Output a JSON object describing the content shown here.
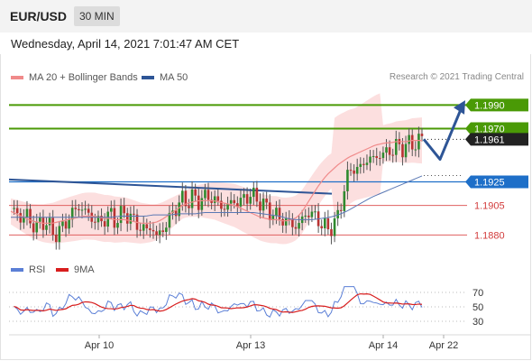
{
  "header": {
    "symbol": "EUR/USD",
    "timeframe": "30 MIN"
  },
  "timestamp": "Wednesday, April 14, 2021 7:01:47 AM CET",
  "legend": {
    "ma20": {
      "label": "MA 20 + Bollinger Bands",
      "color": "#f08a8a"
    },
    "ma50": {
      "label": "MA 50",
      "color": "#2e5596"
    }
  },
  "copyright": "Research © 2021 Trading Central",
  "rsi_legend": {
    "rsi": {
      "label": "RSI",
      "color": "#5b7fd6"
    },
    "ma9": {
      "label": "9MA",
      "color": "#d81e1e"
    }
  },
  "colors": {
    "resistance": "#4a9a06",
    "support": "#e06060",
    "pivot": "#1e6fc8",
    "arrow": "#2e5596",
    "current": "#222222"
  },
  "chart_data": {
    "type": "candlestick",
    "x_ticks": [
      "Apr 10",
      "Apr 13",
      "Apr 14",
      "Apr 22"
    ],
    "y_range": [
      1.1862,
      1.2004
    ],
    "levels": [
      {
        "value": 1.199,
        "label": "1.1990",
        "kind": "resistance"
      },
      {
        "value": 1.197,
        "label": "1.1970",
        "kind": "resistance"
      },
      {
        "value": 1.1961,
        "label": "1.1961",
        "kind": "current"
      },
      {
        "value": 1.1925,
        "label": "1.1925",
        "kind": "pivot"
      },
      {
        "value": 1.1905,
        "label": "1.1905",
        "kind": "support"
      },
      {
        "value": 1.188,
        "label": "1.1880",
        "kind": "support"
      }
    ],
    "close_path": [
      1.1902,
      1.1899,
      1.1894,
      1.1897,
      1.189,
      1.1886,
      1.1893,
      1.1889,
      1.1883,
      1.188,
      1.1888,
      1.1893,
      1.19,
      1.1904,
      1.1901,
      1.1897,
      1.1893,
      1.189,
      1.1894,
      1.1898,
      1.1892,
      1.1896,
      1.1899,
      1.1895,
      1.189,
      1.1886,
      1.1884,
      1.1888,
      1.1878,
      1.1884,
      1.189,
      1.1898,
      1.1905,
      1.191,
      1.1908,
      1.1912,
      1.1909,
      1.1911,
      1.1913,
      1.191,
      1.1906,
      1.1903,
      1.1906,
      1.1909,
      1.1907,
      1.1912,
      1.1914,
      1.1911,
      1.1908,
      1.1903,
      1.1899,
      1.1896,
      1.1894,
      1.1891,
      1.1889,
      1.1887,
      1.1893,
      1.19,
      1.1897,
      1.1893,
      1.1888,
      1.1884,
      1.189,
      1.1895,
      1.192,
      1.1932,
      1.1938,
      1.1935,
      1.1942,
      1.1946,
      1.1943,
      1.195,
      1.1948,
      1.1952,
      1.1955,
      1.1953,
      1.1957,
      1.1956,
      1.1959,
      1.1961
    ],
    "ma20_path": [
      1.19,
      1.1898,
      1.1896,
      1.1894,
      1.1892,
      1.1891,
      1.189,
      1.189,
      1.189,
      1.1891,
      1.1892,
      1.1893,
      1.1894,
      1.1895,
      1.1896,
      1.1896,
      1.1896,
      1.1895,
      1.1894,
      1.1894,
      1.1893,
      1.1893,
      1.1893,
      1.1892,
      1.1891,
      1.189,
      1.189,
      1.189,
      1.1891,
      1.1893,
      1.1896,
      1.1899,
      1.1902,
      1.1905,
      1.1907,
      1.1908,
      1.1909,
      1.1909,
      1.1909,
      1.1909,
      1.1908,
      1.1907,
      1.1906,
      1.1905,
      1.1903,
      1.1901,
      1.1899,
      1.1897,
      1.1895,
      1.1894,
      1.1893,
      1.1893,
      1.1892,
      1.1892,
      1.1893,
      1.1895,
      1.19,
      1.1907,
      1.1914,
      1.1921,
      1.1927,
      1.1932,
      1.1936,
      1.194,
      1.1943,
      1.1946,
      1.1948,
      1.195,
      1.1952,
      1.1954,
      1.1956,
      1.1957,
      1.1958,
      1.1958,
      1.1959,
      1.1959,
      1.1959,
      1.196,
      1.196,
      1.196
    ],
    "ma50_path": [
      1.1895,
      1.1895,
      1.1895,
      1.1895,
      1.1895,
      1.1895,
      1.1895,
      1.1895,
      1.1895,
      1.1895,
      1.1895,
      1.1895,
      1.1895,
      1.1896,
      1.1896,
      1.1896,
      1.1896,
      1.1897,
      1.1897,
      1.1897,
      1.1898,
      1.1898,
      1.1898,
      1.1899,
      1.1899,
      1.1899,
      1.1899,
      1.1899,
      1.1899,
      1.1899,
      1.1898,
      1.1897,
      1.1896,
      1.1894,
      1.1893,
      1.1893,
      1.1893,
      1.1894,
      1.1895,
      1.1897,
      1.19,
      1.1904,
      1.1908,
      1.1912,
      1.1915,
      1.1918,
      1.1921,
      1.1924,
      1.1927,
      1.193
    ],
    "trendline": [
      1.1927,
      1.1915
    ],
    "rsi": {
      "levels": [
        70,
        50,
        30
      ]
    }
  }
}
